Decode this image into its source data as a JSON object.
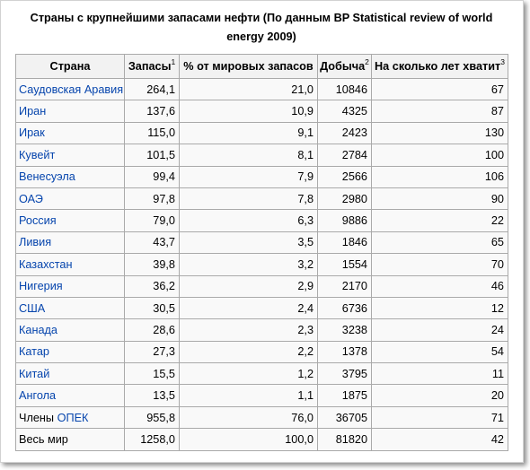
{
  "caption": "Страны с крупнейшими запасами нефти (По данным BP Statistical review of world energy 2009)",
  "colors": {
    "link": "#0645ad",
    "header_bg": "#f2f2f2",
    "cell_bg": "#f9f9f9",
    "border": "#aaaaaa"
  },
  "table": {
    "headers": [
      {
        "label": "Страна"
      },
      {
        "label": "Запасы",
        "sup": "1"
      },
      {
        "label": "% от мировых запасов"
      },
      {
        "label": "Добыча",
        "sup": "2"
      },
      {
        "label": "На сколько лет хватит",
        "sup": "3"
      }
    ],
    "rows": [
      {
        "country": "Саудовская Аравия",
        "reserves": "264,1",
        "share": "21,0",
        "production": "10846",
        "years": "67"
      },
      {
        "country": "Иран",
        "reserves": "137,6",
        "share": "10,9",
        "production": "4325",
        "years": "87"
      },
      {
        "country": "Ирак",
        "reserves": "115,0",
        "share": "9,1",
        "production": "2423",
        "years": "130"
      },
      {
        "country": "Кувейт",
        "reserves": "101,5",
        "share": "8,1",
        "production": "2784",
        "years": "100"
      },
      {
        "country": "Венесуэла",
        "reserves": "99,4",
        "share": "7,9",
        "production": "2566",
        "years": "106"
      },
      {
        "country": "ОАЭ",
        "reserves": "97,8",
        "share": "7,8",
        "production": "2980",
        "years": "90"
      },
      {
        "country": "Россия",
        "reserves": "79,0",
        "share": "6,3",
        "production": "9886",
        "years": "22"
      },
      {
        "country": "Ливия",
        "reserves": "43,7",
        "share": "3,5",
        "production": "1846",
        "years": "65"
      },
      {
        "country": "Казахстан",
        "reserves": "39,8",
        "share": "3,2",
        "production": "1554",
        "years": "70"
      },
      {
        "country": "Нигерия",
        "reserves": "36,2",
        "share": "2,9",
        "production": "2170",
        "years": "46"
      },
      {
        "country": "США",
        "reserves": "30,5",
        "share": "2,4",
        "production": "6736",
        "years": "12"
      },
      {
        "country": "Канада",
        "reserves": "28,6",
        "share": "2,3",
        "production": "3238",
        "years": "24"
      },
      {
        "country": "Катар",
        "reserves": "27,3",
        "share": "2,2",
        "production": "1378",
        "years": "54"
      },
      {
        "country": "Китай",
        "reserves": "15,5",
        "share": "1,2",
        "production": "3795",
        "years": "11"
      },
      {
        "country": "Ангола",
        "reserves": "13,5",
        "share": "1,1",
        "production": "1875",
        "years": "20"
      },
      {
        "label": "Члены",
        "country": "ОПЕК",
        "reserves": "955,8",
        "share": "76,0",
        "production": "36705",
        "years": "71"
      },
      {
        "label": "Весь мир",
        "reserves": "1258,0",
        "share": "100,0",
        "production": "81820",
        "years": "42"
      }
    ]
  }
}
